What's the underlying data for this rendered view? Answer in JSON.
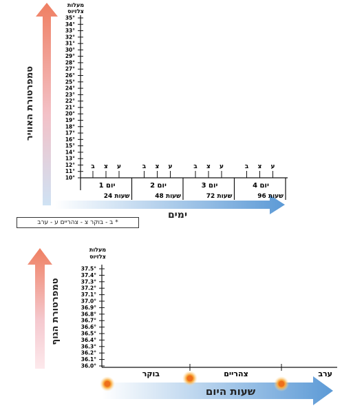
{
  "charts": {
    "air_temperature": {
      "unit_label": "מעלות\nצלזיוס",
      "y_axis_arrow_label": "טמפרטורת האוויר",
      "x_axis_arrow_label": "ימים",
      "legend_note": "* ב - בוקר  צ - צהריים  ע - ערב",
      "y_ticks": [
        "35°",
        "34°",
        "33°",
        "32°",
        "31°",
        "30°",
        "29°",
        "28°",
        "27°",
        "26°",
        "25°",
        "24°",
        "23°",
        "22°",
        "21°",
        "20°",
        "19°",
        "18°",
        "17°",
        "16°",
        "15°",
        "14°",
        "13°",
        "12°",
        "11°",
        "10°"
      ],
      "days": [
        {
          "label": "יום 1",
          "hours_label": "24 שעות"
        },
        {
          "label": "יום 2",
          "hours_label": "48 שעות"
        },
        {
          "label": "יום 3",
          "hours_label": "72 שעות"
        },
        {
          "label": "יום 4",
          "hours_label": "96 שעות"
        }
      ],
      "time_markers": [
        "ב",
        "צ",
        "ע"
      ]
    },
    "body_temperature": {
      "unit_label": "מעלות\nצלזיוס",
      "y_axis_arrow_label": "טמפרטורת הגוף",
      "x_axis_arrow_label": "שעות היום",
      "y_ticks": [
        "37.5°",
        "37.4°",
        "37.3°",
        "37.2°",
        "37.1°",
        "37.0°",
        "36.9°",
        "36.8°",
        "36.7°",
        "36.6°",
        "36.5°",
        "36.4°",
        "36.3°",
        "36.2°",
        "36.1°",
        "36.0°"
      ],
      "x_categories": [
        "בוקר",
        "צהריים",
        "ערב"
      ]
    }
  },
  "chart_data": [
    {
      "type": "line",
      "title": "",
      "xlabel": "ימים",
      "ylabel": "טמפרטורת האוויר",
      "ylim": [
        10,
        35
      ],
      "categories": [
        "יום 1",
        "יום 2",
        "יום 3",
        "יום 4"
      ],
      "series": []
    },
    {
      "type": "line",
      "title": "",
      "xlabel": "שעות היום",
      "ylabel": "טמפרטורת הגוף",
      "ylim": [
        36.0,
        37.5
      ],
      "categories": [
        "בוקר",
        "צהריים",
        "ערב"
      ],
      "series": []
    }
  ],
  "colors": {
    "arrow_top": "#ef8b6a",
    "arrow_bottom": "#c9dff2",
    "x_arrow_start": "#ffffff",
    "x_arrow_end": "#5c9ad6",
    "sun_core": "#f28c28",
    "sun_glow": "#ffd48a"
  }
}
